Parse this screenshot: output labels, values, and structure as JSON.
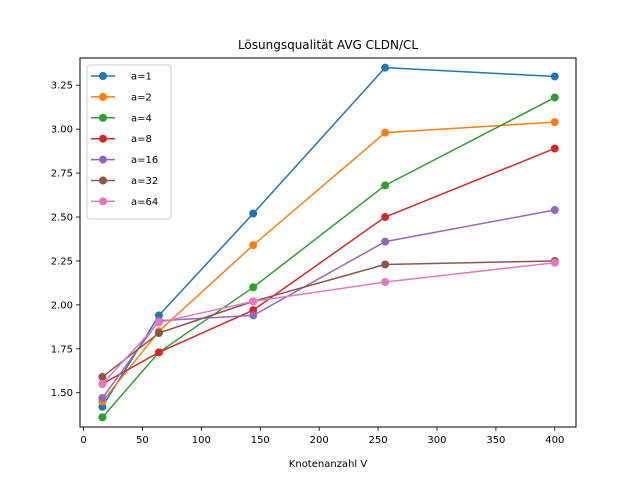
{
  "chart_data": {
    "type": "line",
    "title": "Lösungsqualität AVG CLDN/CL",
    "xlabel": "Knotenanzahl V",
    "ylabel": "",
    "xlim": [
      -3,
      418
    ],
    "ylim": [
      1.305,
      3.405
    ],
    "xticks": [
      0,
      50,
      100,
      150,
      200,
      250,
      300,
      350,
      400
    ],
    "xtick_labels": [
      "0",
      "50",
      "100",
      "150",
      "200",
      "250",
      "300",
      "350",
      "400"
    ],
    "yticks": [
      1.5,
      1.75,
      2.0,
      2.25,
      2.5,
      2.75,
      3.0,
      3.25
    ],
    "ytick_labels": [
      "1.50",
      "1.75",
      "2.00",
      "2.25",
      "2.50",
      "2.75",
      "3.00",
      "3.25"
    ],
    "grid": false,
    "legend_position": "top-left",
    "x": [
      16,
      64,
      144,
      256,
      400
    ],
    "series": [
      {
        "name": "a=1",
        "color": "#1f77b4",
        "values": [
          1.42,
          1.94,
          2.52,
          3.35,
          3.3
        ]
      },
      {
        "name": "a=2",
        "color": "#ff7f0e",
        "values": [
          1.45,
          1.85,
          2.34,
          2.98,
          3.04
        ]
      },
      {
        "name": "a=4",
        "color": "#2ca02c",
        "values": [
          1.36,
          1.73,
          2.1,
          2.68,
          3.18
        ]
      },
      {
        "name": "a=8",
        "color": "#d62728",
        "values": [
          1.55,
          1.73,
          1.97,
          2.5,
          2.89
        ]
      },
      {
        "name": "a=16",
        "color": "#9467bd",
        "values": [
          1.47,
          1.91,
          1.94,
          2.36,
          2.54
        ]
      },
      {
        "name": "a=32",
        "color": "#8c564b",
        "values": [
          1.59,
          1.84,
          2.02,
          2.23,
          2.25
        ]
      },
      {
        "name": "a=64",
        "color": "#e377c2",
        "values": [
          1.55,
          1.9,
          2.02,
          2.13,
          2.24
        ]
      }
    ]
  }
}
